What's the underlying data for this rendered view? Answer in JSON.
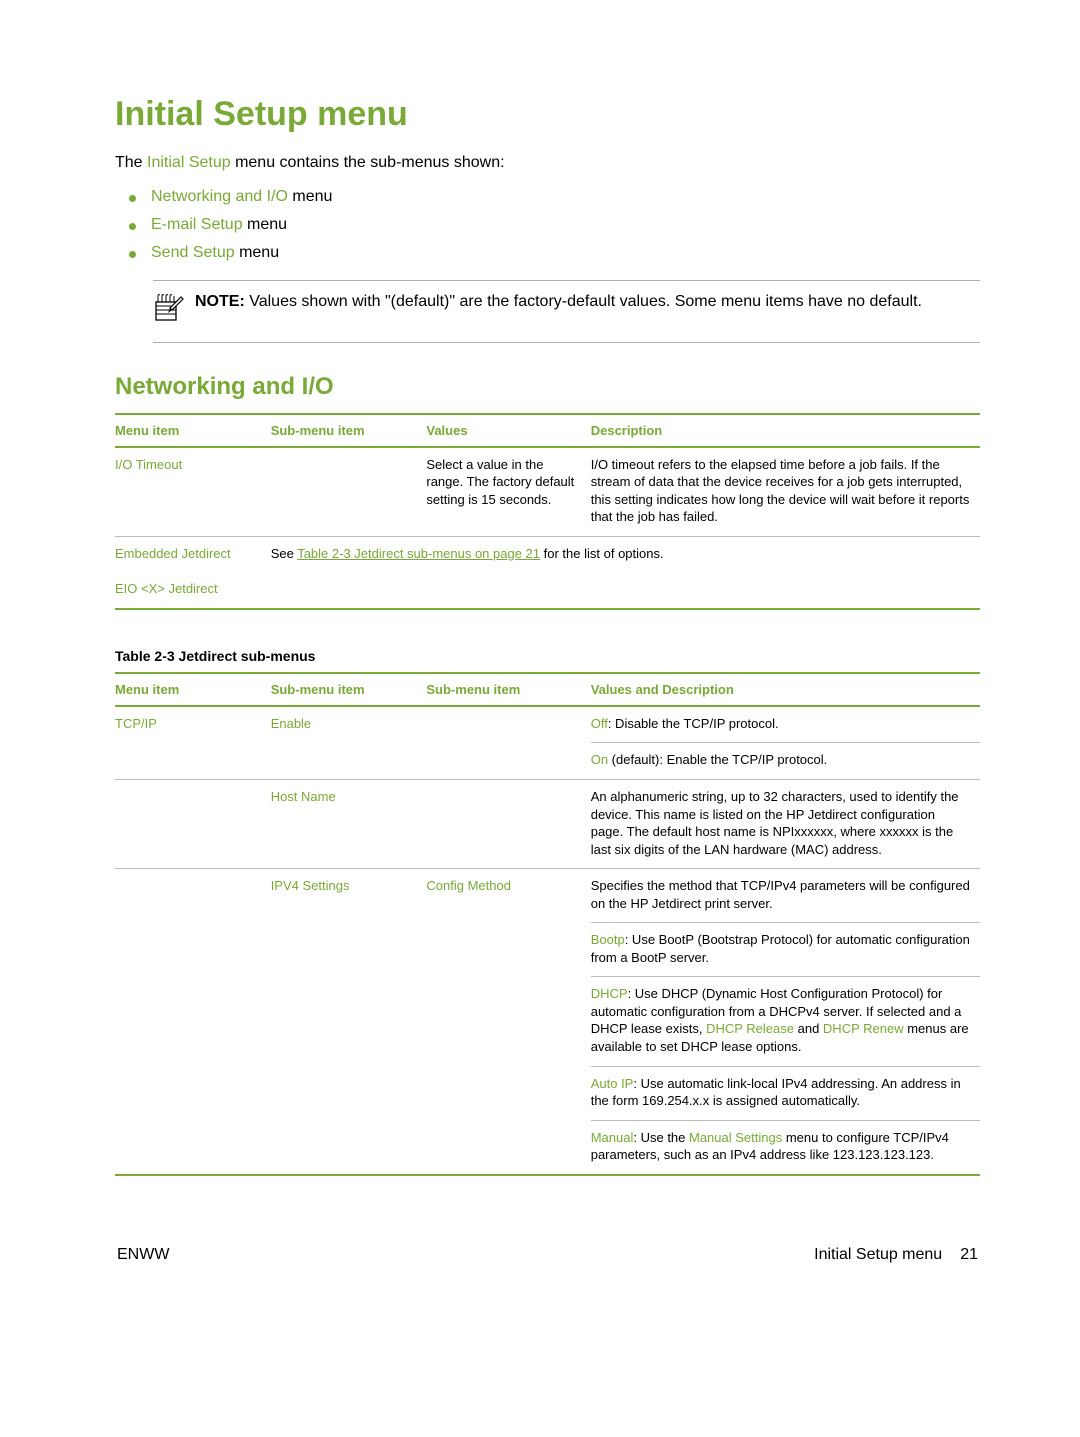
{
  "colors": {
    "accent": "#79a936",
    "text": "#000000",
    "rule_light": "#bdbdbd",
    "rule_med": "#b0b0b0",
    "background": "#ffffff"
  },
  "page": {
    "title": "Initial Setup menu",
    "intro_pre": "The ",
    "intro_link": "Initial Setup",
    "intro_post": " menu contains the sub-menus shown:",
    "bullets": [
      {
        "link": "Networking and I/O",
        "text": " menu"
      },
      {
        "link": "E-mail Setup",
        "text": " menu"
      },
      {
        "link": "Send Setup",
        "text": " menu"
      }
    ],
    "note_label": "NOTE:",
    "note_text": "   Values shown with \"(default)\" are the factory-default values. Some menu items have no default."
  },
  "section": {
    "title": "Networking and I/O"
  },
  "table1": {
    "headers": [
      "Menu item",
      "Sub-menu item",
      "Values",
      "Description"
    ],
    "col_widths": [
      "18%",
      "18%",
      "19%",
      "45%"
    ],
    "rows": [
      {
        "menu": "I/O Timeout",
        "sub": "",
        "values": "Select a value in the range. The factory default setting is 15 seconds.",
        "desc": "I/O timeout refers to the elapsed time before a job fails. If the stream of data that the device receives for a job gets interrupted, this setting indicates how long the device will wait before it reports that the job has failed."
      },
      {
        "menu": "Embedded Jetdirect",
        "span_pre": "See ",
        "span_link": "Table 2-3 Jetdirect sub-menus on page 21",
        "span_post": " for the list of options."
      },
      {
        "menu": "EIO <X> Jetdirect"
      }
    ]
  },
  "table2": {
    "caption_label": "Table 2-3",
    "caption_title": "  Jetdirect sub-menus",
    "headers": [
      "Menu item",
      "Sub-menu item",
      "Sub-menu item",
      "Values and Description"
    ],
    "col_widths": [
      "18%",
      "18%",
      "19%",
      "45%"
    ],
    "rows": [
      {
        "c1": "TCP/IP",
        "c2": "Enable",
        "c3": "",
        "d_key": "Off",
        "d_text": ": Disable the TCP/IP protocol.",
        "border": "sub"
      },
      {
        "c1": "",
        "c2": "",
        "c3": "",
        "d_key": "On",
        "d_text": " (default): Enable the TCP/IP protocol.",
        "border": "full"
      },
      {
        "c1": "",
        "c2": "Host Name",
        "c3": "",
        "d_text_plain": "An alphanumeric string, up to 32 characters, used to identify the device. This name is listed on the HP Jetdirect configuration page. The default host name is NPIxxxxxx, where xxxxxx is the last six digits of the LAN hardware (MAC) address.",
        "border": "full"
      },
      {
        "c1": "",
        "c2": "IPV4 Settings",
        "c3": "Config Method",
        "d_text_plain": "Specifies the method that TCP/IPv4 parameters will be configured on the HP Jetdirect print server.",
        "border": "sub"
      },
      {
        "c1": "",
        "c2": "",
        "c3": "",
        "d_key": "Bootp",
        "d_text": ": Use BootP (Bootstrap Protocol) for automatic configuration from a BootP server.",
        "border": "sub"
      },
      {
        "c1": "",
        "c2": "",
        "c3": "",
        "d_html_dhcp": true,
        "d_key1": "DHCP",
        "d_t1": ": Use DHCP (Dynamic Host Configuration Protocol) for automatic configuration from a DHCPv4 server. If selected and a DHCP lease exists, ",
        "d_key2": "DHCP Release",
        "d_t2": " and ",
        "d_key3": "DHCP Renew",
        "d_t3": " menus are available to set DHCP lease options.",
        "border": "sub"
      },
      {
        "c1": "",
        "c2": "",
        "c3": "",
        "d_key": "Auto IP",
        "d_text": ": Use automatic link-local IPv4 addressing. An address in the form 169.254.x.x is assigned automatically.",
        "border": "sub"
      },
      {
        "c1": "",
        "c2": "",
        "c3": "",
        "d_key": "Manual",
        "d_t1": ": Use the ",
        "d_key2": "Manual Settings",
        "d_t2": " menu to configure TCP/IPv4 parameters, such as an IPv4 address like 123.123.123.123.",
        "border": "end"
      }
    ]
  },
  "footer": {
    "left": "ENWW",
    "right_label": "Initial Setup menu",
    "page": "21"
  }
}
